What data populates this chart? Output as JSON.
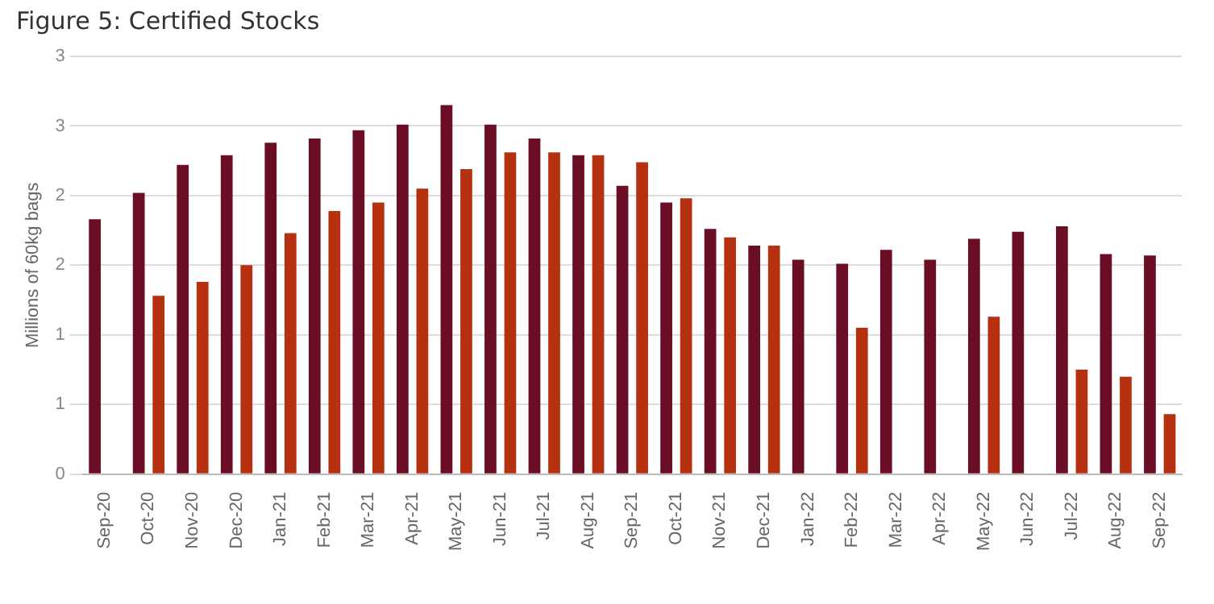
{
  "chart_data": {
    "type": "bar",
    "title": "Figure 5: Certified Stocks",
    "ylabel": "Millions of 60kg bags",
    "categories": [
      "Sep-20",
      "Oct-20",
      "Nov-20",
      "Dec-20",
      "Jan-21",
      "Feb-21",
      "Mar-21",
      "Apr-21",
      "May-21",
      "Jun-21",
      "Jul-21",
      "Aug-21",
      "Sep-21",
      "Oct-21",
      "Nov-21",
      "Dec-21",
      "Jan-22",
      "Feb-22",
      "Mar-22",
      "Apr-22",
      "May-22",
      "Jun-22",
      "Jul-22",
      "Aug-22",
      "Sep-22"
    ],
    "series": [
      {
        "color": "#6b0d24",
        "values": [
          1.83,
          2.02,
          2.22,
          2.29,
          2.38,
          2.41,
          2.47,
          2.51,
          2.65,
          2.51,
          2.41,
          2.29,
          2.07,
          1.95,
          1.76,
          1.64,
          1.54,
          1.51,
          1.61,
          1.54,
          1.69,
          1.74,
          1.78,
          1.58,
          1.57
        ]
      },
      {
        "color": "#b5310f",
        "values": [
          null,
          1.28,
          1.38,
          1.5,
          1.73,
          1.89,
          1.95,
          2.05,
          2.19,
          2.31,
          2.31,
          2.29,
          2.24,
          1.98,
          1.7,
          1.64,
          null,
          1.05,
          null,
          null,
          1.13,
          null,
          0.75,
          0.7,
          0.43
        ]
      }
    ],
    "ylim": [
      0,
      3
    ],
    "yticks": [
      0,
      {
        "value": 0.5,
        "label": "1"
      },
      1,
      {
        "value": 1.5,
        "label": "2"
      },
      2,
      {
        "value": 2.5,
        "label": "3"
      },
      3
    ],
    "grid": "y"
  }
}
